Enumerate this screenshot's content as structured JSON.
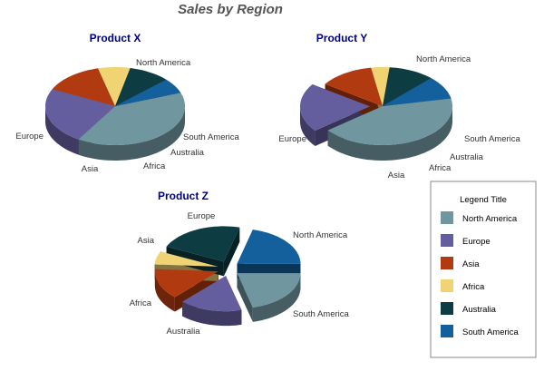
{
  "chart_data": {
    "type": "pie",
    "title": "Sales by Region",
    "style": "3d-pie",
    "categories": [
      "North America",
      "Europe",
      "Asia",
      "Africa",
      "Australia",
      "South America"
    ],
    "colors": {
      "North America": "#7096a0",
      "Europe": "#655e9e",
      "Asia": "#b23a10",
      "Africa": "#f0d474",
      "Australia": "#0d3c42",
      "South America": "#13609c"
    },
    "series": [
      {
        "name": "Product X",
        "values": [
          37,
          22,
          13,
          7,
          9,
          6
        ],
        "exploded": []
      },
      {
        "name": "Product Y",
        "values": [
          40,
          19,
          12,
          4,
          10,
          9
        ],
        "exploded": [
          "Europe"
        ]
      },
      {
        "name": "Product Z",
        "values": [
          21,
          16,
          14,
          6,
          22,
          21
        ],
        "exploded": [
          "North America",
          "Europe",
          "Asia",
          "Africa",
          "Australia",
          "South America"
        ]
      }
    ],
    "legend": {
      "title": "Legend Title",
      "position": "bottom-right"
    }
  }
}
